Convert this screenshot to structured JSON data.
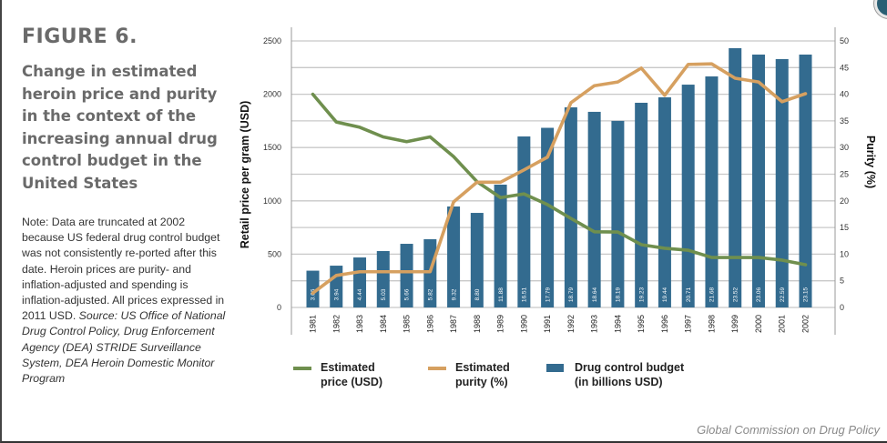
{
  "figure": {
    "label": "FIGURE 6.",
    "title": "Change in estimated heroin price and purity in the context of the increasing annual drug control budget in the United States",
    "note": "Note: Data are truncated at 2002 because US federal drug control budget was not consistently re-ported after this date. Heroin prices are purity- and inflation-adjusted and spending is inflation-adjusted. All prices expressed in 2011 USD.",
    "source": "Source: US Office of National Drug Control Policy, Drug Enforcement Agency (DEA) STRIDE Surveillance System, DEA Heroin Domestic Monitor Program",
    "footer": "Global Commission on Drug Policy"
  },
  "colors": {
    "price": "#6f8f4e",
    "purity": "#d6a060",
    "budget": "#336b8f",
    "grid": "#c8c8c8",
    "axis": "#999999"
  },
  "chart_data": {
    "type": "bar",
    "title": "Change in estimated heroin price and purity in the context of the increasing annual drug control budget in the United States",
    "xlabel": "",
    "ylabel": "Retail price per gram (USD)",
    "y2label": "Purity (%)",
    "ylim": [
      0,
      2500
    ],
    "y2lim": [
      0,
      50
    ],
    "yticks": [
      0,
      500,
      1000,
      1500,
      2000,
      2500
    ],
    "y2ticks": [
      0,
      5,
      10,
      15,
      20,
      25,
      30,
      35,
      40,
      45,
      50
    ],
    "grid": true,
    "legend_position": "bottom",
    "categories": [
      "1981",
      "1982",
      "1983",
      "1984",
      "1985",
      "1986",
      "1987",
      "1988",
      "1989",
      "1990",
      "1991",
      "1992",
      "1993",
      "1994",
      "1995",
      "1996",
      "1997",
      "1998",
      "1999",
      "2000",
      "2001",
      "2002"
    ],
    "series": [
      {
        "name": "Drug control budget (in billions USD)",
        "legend": "Drug control budget\n(in billions USD)",
        "type": "bar",
        "axis": "left",
        "values": [
          345,
          392,
          469,
          529,
          597,
          640,
          947,
          887,
          1152,
          1604,
          1685,
          1877,
          1835,
          1750,
          1920,
          1971,
          2090,
          2167,
          2432,
          2372,
          2330,
          2372
        ],
        "labels": [
          "3.66",
          "3.94",
          "4.44",
          "5.03",
          "5.66",
          "5.82",
          "9.32",
          "8.80",
          "11.88",
          "16.51",
          "17.79",
          "18.79",
          "18.64",
          "18.19",
          "19.23",
          "19.44",
          "20.71",
          "21.68",
          "23.52",
          "23.06",
          "22.59",
          "23.15"
        ]
      },
      {
        "name": "Estimated price (USD)",
        "legend": "Estimated\nprice (USD)",
        "type": "line",
        "axis": "left",
        "values": [
          2000,
          1740,
          1690,
          1600,
          1555,
          1600,
          1415,
          1180,
          1030,
          1065,
          965,
          835,
          710,
          708,
          589,
          555,
          537,
          469,
          469,
          469,
          444,
          401
        ]
      },
      {
        "name": "Estimated purity (%)",
        "legend": "Estimated\npurity (%)",
        "type": "line",
        "axis": "right",
        "values": [
          2.7,
          6.0,
          6.7,
          6.7,
          6.7,
          6.7,
          19.8,
          23.5,
          23.5,
          25.8,
          28.2,
          38.4,
          41.6,
          42.3,
          44.9,
          39.8,
          45.6,
          45.7,
          43.0,
          42.3,
          38.6,
          40.1
        ]
      }
    ]
  }
}
